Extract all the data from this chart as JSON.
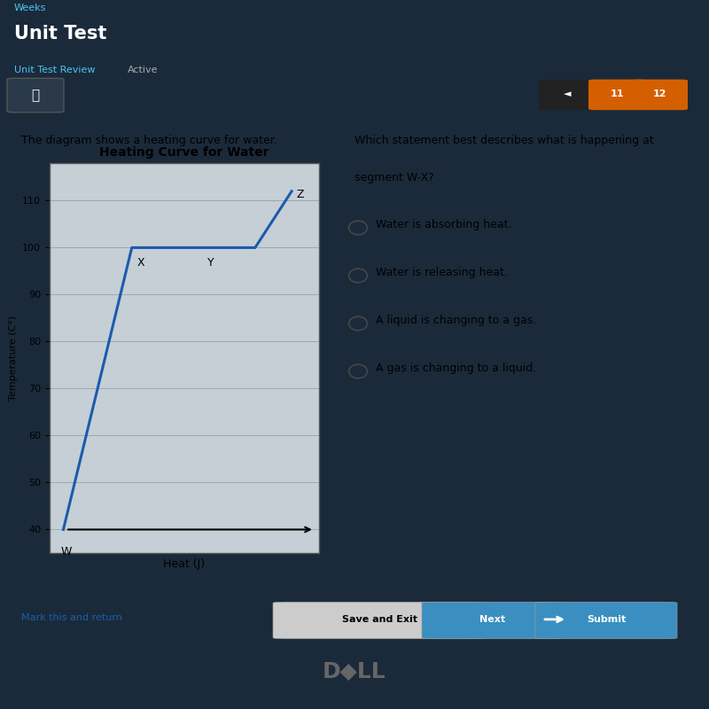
{
  "bg_top": "#1a2a3a",
  "bg_main": "#cdd5d8",
  "title_text": "Unit Test",
  "subtitle_text": "Unit Test Review",
  "active_text": "Active",
  "weeks_text": "Weeks",
  "left_desc": "The diagram shows a heating curve for water.",
  "right_question_line1": "Which statement best describes what is happening at",
  "right_question_line2": "segment W-X?",
  "options": [
    "Water is absorbing heat.",
    "Water is releasing heat.",
    "A liquid is changing to a gas.",
    "A gas is changing to a liquid."
  ],
  "chart_title": "Heating Curve for Water",
  "xlabel": "Heat (J)",
  "ylabel": "Temperature (C°)",
  "yticks": [
    40,
    50,
    60,
    70,
    80,
    90,
    100,
    110
  ],
  "curve_color": "#1e5aad",
  "curve_x": [
    0,
    0,
    1.5,
    3.0,
    4.2,
    5.0
  ],
  "curve_y": [
    40,
    40,
    100,
    100,
    100,
    112
  ],
  "point_labels": [
    "W",
    "X",
    "Y",
    "Z"
  ],
  "point_x": [
    0,
    1.5,
    3.0,
    5.0
  ],
  "point_y": [
    40,
    100,
    100,
    112
  ],
  "nav_color": "#d45f00",
  "nav_dark": "#222222",
  "button_blue": "#3a8fc0",
  "button_gray": "#cccccc",
  "dell_color": "#666666",
  "footer_link_color": "#1a5fa8"
}
